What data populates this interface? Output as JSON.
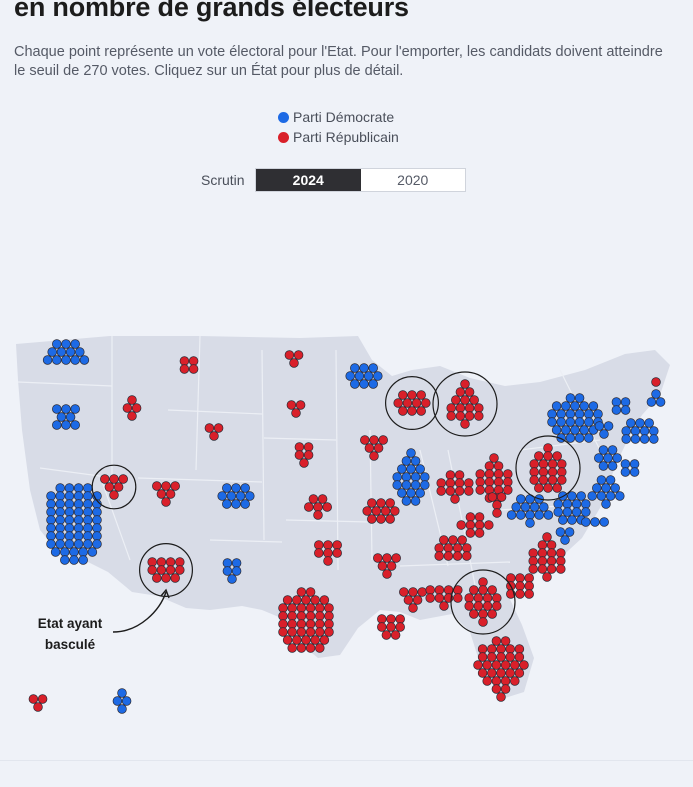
{
  "header": {
    "title": "en nombre de grands électeurs",
    "subtitle": "Chaque point représente un vote électoral pour l'Etat. Pour l'emporter, les candidats doivent atteindre le seuil de 270 votes. Cliquez sur un État pour plus de détail."
  },
  "legend": {
    "dem_label": "Parti Démocrate",
    "rep_label": "Parti Républicain"
  },
  "colors": {
    "dem": "#1d6ae5",
    "rep": "#d9202a",
    "land": "#d8dce7",
    "border": "#eceff5"
  },
  "scrutin": {
    "label": "Scrutin",
    "options": [
      "2024",
      "2020"
    ],
    "selected": "2024"
  },
  "annotation": {
    "text": "Etat ayant basculé"
  },
  "map_data": {
    "states": [
      {
        "code": "WA",
        "party": "D",
        "votes": 12
      },
      {
        "code": "OR",
        "party": "D",
        "votes": 8
      },
      {
        "code": "CA",
        "party": "D",
        "votes": 54
      },
      {
        "code": "ID",
        "party": "R",
        "votes": 4
      },
      {
        "code": "NV",
        "party": "R",
        "votes": 6,
        "flipped": true
      },
      {
        "code": "AZ",
        "party": "R",
        "votes": 11,
        "flipped": true
      },
      {
        "code": "MT",
        "party": "R",
        "votes": 4
      },
      {
        "code": "WY",
        "party": "R",
        "votes": 3
      },
      {
        "code": "UT",
        "party": "R",
        "votes": 6
      },
      {
        "code": "CO",
        "party": "D",
        "votes": 10
      },
      {
        "code": "NM",
        "party": "D",
        "votes": 5
      },
      {
        "code": "ND",
        "party": "R",
        "votes": 3
      },
      {
        "code": "SD",
        "party": "R",
        "votes": 3
      },
      {
        "code": "NE",
        "party": "R",
        "votes": 5
      },
      {
        "code": "KS",
        "party": "R",
        "votes": 6
      },
      {
        "code": "OK",
        "party": "R",
        "votes": 7
      },
      {
        "code": "TX",
        "party": "R",
        "votes": 40
      },
      {
        "code": "MN",
        "party": "D",
        "votes": 10
      },
      {
        "code": "IA",
        "party": "R",
        "votes": 6
      },
      {
        "code": "MO",
        "party": "R",
        "votes": 10
      },
      {
        "code": "AR",
        "party": "R",
        "votes": 6
      },
      {
        "code": "LA",
        "party": "R",
        "votes": 8
      },
      {
        "code": "WI",
        "party": "R",
        "votes": 10,
        "flipped": true
      },
      {
        "code": "IL",
        "party": "D",
        "votes": 19
      },
      {
        "code": "MI",
        "party": "R",
        "votes": 15,
        "flipped": true
      },
      {
        "code": "IN",
        "party": "R",
        "votes": 11
      },
      {
        "code": "OH",
        "party": "R",
        "votes": 17
      },
      {
        "code": "KY",
        "party": "R",
        "votes": 8
      },
      {
        "code": "TN",
        "party": "R",
        "votes": 11
      },
      {
        "code": "MS",
        "party": "R",
        "votes": 6
      },
      {
        "code": "AL",
        "party": "R",
        "votes": 9
      },
      {
        "code": "GA",
        "party": "R",
        "votes": 16,
        "flipped": true
      },
      {
        "code": "FL",
        "party": "R",
        "votes": 30
      },
      {
        "code": "SC",
        "party": "R",
        "votes": 9
      },
      {
        "code": "NC",
        "party": "R",
        "votes": 16
      },
      {
        "code": "VA",
        "party": "D",
        "votes": 13
      },
      {
        "code": "WV",
        "party": "R",
        "votes": 4
      },
      {
        "code": "PA",
        "party": "R",
        "votes": 19,
        "flipped": true
      },
      {
        "code": "NY",
        "party": "D",
        "votes": 28
      },
      {
        "code": "NJ",
        "party": "D",
        "votes": 14
      },
      {
        "code": "MD",
        "party": "D",
        "votes": 10
      },
      {
        "code": "DE",
        "party": "D",
        "votes": 3
      },
      {
        "code": "DC",
        "party": "D",
        "votes": 3
      },
      {
        "code": "CT",
        "party": "D",
        "votes": 7
      },
      {
        "code": "RI",
        "party": "D",
        "votes": 4
      },
      {
        "code": "MA",
        "party": "D",
        "votes": 11
      },
      {
        "code": "VT",
        "party": "D",
        "votes": 3
      },
      {
        "code": "NH",
        "party": "D",
        "votes": 4
      },
      {
        "code": "ME",
        "party": "D",
        "votes": 3
      },
      {
        "code": "ME2",
        "party": "R",
        "votes": 1
      },
      {
        "code": "AK",
        "party": "R",
        "votes": 3
      },
      {
        "code": "HI",
        "party": "D",
        "votes": 4
      }
    ]
  }
}
